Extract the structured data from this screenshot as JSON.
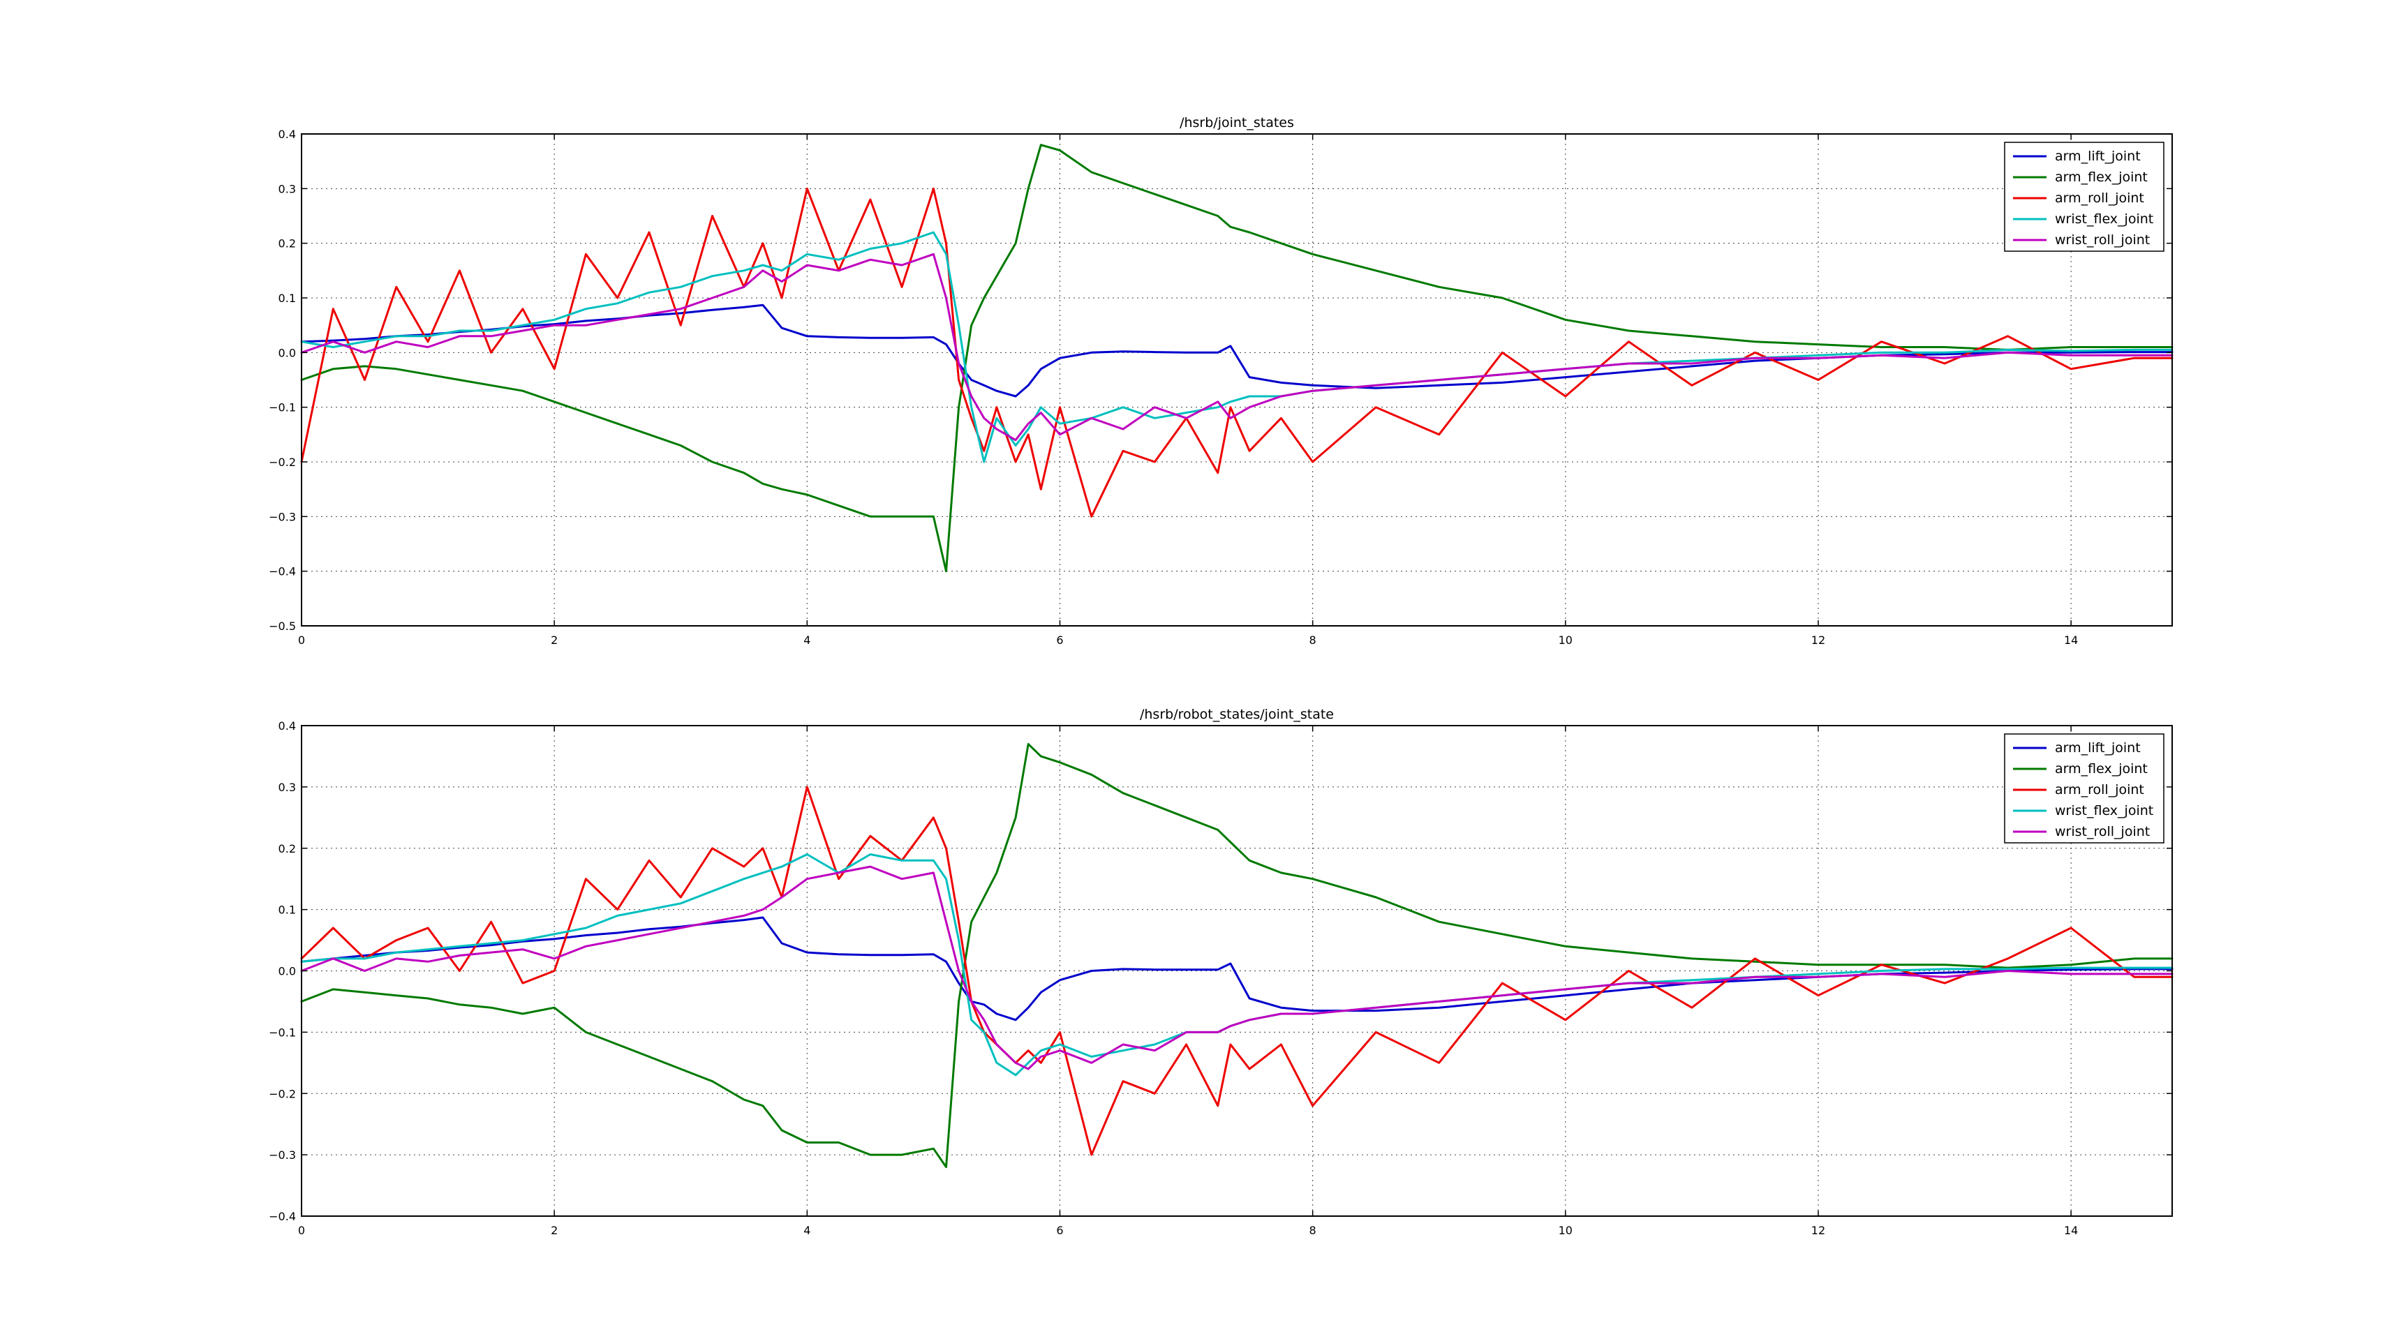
{
  "colors": {
    "arm_lift_joint": "#0000cc",
    "arm_flex_joint": "#007a00",
    "arm_roll_joint": "#ee0000",
    "wrist_flex_joint": "#00bfbf",
    "wrist_roll_joint": "#bf00bf"
  },
  "chart_data": [
    {
      "type": "line",
      "title": "/hsrb/joint_states",
      "xlabel": "",
      "ylabel": "",
      "xlim": [
        0,
        14.8
      ],
      "ylim": [
        -0.5,
        0.4
      ],
      "xticks": [
        0,
        2,
        4,
        6,
        8,
        10,
        12,
        14
      ],
      "yticks": [
        -0.5,
        -0.4,
        -0.3,
        -0.2,
        -0.1,
        0.0,
        0.1,
        0.2,
        0.3,
        0.4
      ],
      "ytick_labels": [
        "−0.5",
        "−0.4",
        "−0.3",
        "−0.2",
        "−0.1",
        "0.0",
        "0.1",
        "0.2",
        "0.3",
        "0.4"
      ],
      "grid": true,
      "legend": "top-right",
      "x": [
        0,
        0.25,
        0.5,
        0.75,
        1.0,
        1.25,
        1.5,
        1.75,
        2.0,
        2.25,
        2.5,
        2.75,
        3.0,
        3.25,
        3.5,
        3.65,
        3.8,
        4.0,
        4.25,
        4.5,
        4.75,
        5.0,
        5.1,
        5.2,
        5.3,
        5.4,
        5.5,
        5.65,
        5.75,
        5.85,
        6.0,
        6.25,
        6.5,
        6.75,
        7.0,
        7.25,
        7.35,
        7.5,
        7.75,
        8.0,
        8.5,
        9.0,
        9.5,
        10.0,
        10.5,
        11.0,
        11.5,
        12.0,
        12.5,
        13.0,
        13.5,
        14.0,
        14.5,
        14.8
      ],
      "series": [
        {
          "name": "arm_lift_joint",
          "values": [
            0.02,
            0.022,
            0.025,
            0.03,
            0.033,
            0.038,
            0.042,
            0.048,
            0.052,
            0.058,
            0.062,
            0.068,
            0.072,
            0.078,
            0.083,
            0.087,
            0.045,
            0.03,
            0.028,
            0.027,
            0.027,
            0.028,
            0.015,
            -0.02,
            -0.05,
            -0.06,
            -0.07,
            -0.08,
            -0.06,
            -0.03,
            -0.01,
            0.0,
            0.002,
            0.001,
            0.0,
            0.0,
            0.012,
            -0.045,
            -0.055,
            -0.06,
            -0.065,
            -0.06,
            -0.055,
            -0.045,
            -0.035,
            -0.025,
            -0.015,
            -0.01,
            -0.005,
            -0.003,
            0.0,
            0.0,
            0.001,
            0.001
          ]
        },
        {
          "name": "arm_flex_joint",
          "values": [
            -0.05,
            -0.03,
            -0.025,
            -0.03,
            -0.04,
            -0.05,
            -0.06,
            -0.07,
            -0.09,
            -0.11,
            -0.13,
            -0.15,
            -0.17,
            -0.2,
            -0.22,
            -0.24,
            -0.25,
            -0.26,
            -0.28,
            -0.3,
            -0.3,
            -0.3,
            -0.4,
            -0.1,
            0.05,
            0.1,
            0.14,
            0.2,
            0.3,
            0.38,
            0.37,
            0.33,
            0.31,
            0.29,
            0.27,
            0.25,
            0.23,
            0.22,
            0.2,
            0.18,
            0.15,
            0.12,
            0.1,
            0.06,
            0.04,
            0.03,
            0.02,
            0.015,
            0.01,
            0.01,
            0.005,
            0.01,
            0.01,
            0.01
          ]
        },
        {
          "name": "arm_roll_joint",
          "values": [
            -0.2,
            0.08,
            -0.05,
            0.12,
            0.02,
            0.15,
            0.0,
            0.08,
            -0.03,
            0.18,
            0.1,
            0.22,
            0.05,
            0.25,
            0.12,
            0.2,
            0.1,
            0.3,
            0.15,
            0.28,
            0.12,
            0.3,
            0.2,
            -0.05,
            -0.12,
            -0.18,
            -0.1,
            -0.2,
            -0.15,
            -0.25,
            -0.1,
            -0.3,
            -0.18,
            -0.2,
            -0.12,
            -0.22,
            -0.1,
            -0.18,
            -0.12,
            -0.2,
            -0.1,
            -0.15,
            0.0,
            -0.08,
            0.02,
            -0.06,
            0.0,
            -0.05,
            0.02,
            -0.02,
            0.03,
            -0.03,
            -0.01,
            -0.01
          ]
        },
        {
          "name": "wrist_flex_joint",
          "values": [
            0.02,
            0.01,
            0.02,
            0.03,
            0.03,
            0.04,
            0.04,
            0.05,
            0.06,
            0.08,
            0.09,
            0.11,
            0.12,
            0.14,
            0.15,
            0.16,
            0.15,
            0.18,
            0.17,
            0.19,
            0.2,
            0.22,
            0.18,
            0.05,
            -0.1,
            -0.2,
            -0.12,
            -0.17,
            -0.14,
            -0.1,
            -0.13,
            -0.12,
            -0.1,
            -0.12,
            -0.11,
            -0.1,
            -0.09,
            -0.08,
            -0.08,
            -0.07,
            -0.06,
            -0.05,
            -0.04,
            -0.03,
            -0.02,
            -0.015,
            -0.01,
            -0.005,
            0.0,
            0.0,
            0.005,
            0.003,
            0.005,
            0.005
          ]
        },
        {
          "name": "wrist_roll_joint",
          "values": [
            0.0,
            0.02,
            0.0,
            0.02,
            0.01,
            0.03,
            0.03,
            0.04,
            0.05,
            0.05,
            0.06,
            0.07,
            0.08,
            0.1,
            0.12,
            0.15,
            0.13,
            0.16,
            0.15,
            0.17,
            0.16,
            0.18,
            0.1,
            -0.02,
            -0.08,
            -0.12,
            -0.14,
            -0.16,
            -0.13,
            -0.11,
            -0.15,
            -0.12,
            -0.14,
            -0.1,
            -0.12,
            -0.09,
            -0.12,
            -0.1,
            -0.08,
            -0.07,
            -0.06,
            -0.05,
            -0.04,
            -0.03,
            -0.02,
            -0.02,
            -0.01,
            -0.01,
            -0.005,
            -0.01,
            0.0,
            -0.005,
            -0.005,
            -0.005
          ]
        }
      ]
    },
    {
      "type": "line",
      "title": "/hsrb/robot_states/joint_state",
      "xlabel": "",
      "ylabel": "",
      "xlim": [
        0,
        14.8
      ],
      "ylim": [
        -0.4,
        0.4
      ],
      "xticks": [
        0,
        2,
        4,
        6,
        8,
        10,
        12,
        14
      ],
      "yticks": [
        -0.4,
        -0.3,
        -0.2,
        -0.1,
        0.0,
        0.1,
        0.2,
        0.3,
        0.4
      ],
      "ytick_labels": [
        "−0.4",
        "−0.3",
        "−0.2",
        "−0.1",
        "0.0",
        "0.1",
        "0.2",
        "0.3",
        "0.4"
      ],
      "grid": true,
      "legend": "top-right",
      "x": [
        0,
        0.25,
        0.5,
        0.75,
        1.0,
        1.25,
        1.5,
        1.75,
        2.0,
        2.25,
        2.5,
        2.75,
        3.0,
        3.25,
        3.5,
        3.65,
        3.8,
        4.0,
        4.25,
        4.5,
        4.75,
        5.0,
        5.1,
        5.2,
        5.3,
        5.4,
        5.5,
        5.65,
        5.75,
        5.85,
        6.0,
        6.25,
        6.5,
        6.75,
        7.0,
        7.25,
        7.35,
        7.5,
        7.75,
        8.0,
        8.5,
        9.0,
        9.5,
        10.0,
        10.5,
        11.0,
        11.5,
        12.0,
        12.5,
        13.0,
        13.5,
        14.0,
        14.5,
        14.8
      ],
      "series": [
        {
          "name": "arm_lift_joint",
          "values": [
            0.015,
            0.02,
            0.025,
            0.03,
            0.033,
            0.038,
            0.042,
            0.048,
            0.052,
            0.058,
            0.062,
            0.068,
            0.072,
            0.078,
            0.083,
            0.087,
            0.045,
            0.03,
            0.027,
            0.026,
            0.026,
            0.027,
            0.015,
            -0.02,
            -0.05,
            -0.055,
            -0.07,
            -0.08,
            -0.06,
            -0.035,
            -0.015,
            0.0,
            0.003,
            0.002,
            0.002,
            0.002,
            0.012,
            -0.045,
            -0.06,
            -0.065,
            -0.065,
            -0.06,
            -0.05,
            -0.04,
            -0.03,
            -0.02,
            -0.015,
            -0.01,
            -0.005,
            -0.003,
            0.0,
            0.002,
            0.003,
            0.003
          ]
        },
        {
          "name": "arm_flex_joint",
          "values": [
            -0.05,
            -0.03,
            -0.035,
            -0.04,
            -0.045,
            -0.055,
            -0.06,
            -0.07,
            -0.06,
            -0.1,
            -0.12,
            -0.14,
            -0.16,
            -0.18,
            -0.21,
            -0.22,
            -0.26,
            -0.28,
            -0.28,
            -0.3,
            -0.3,
            -0.29,
            -0.32,
            -0.05,
            0.08,
            0.12,
            0.16,
            0.25,
            0.37,
            0.35,
            0.34,
            0.32,
            0.29,
            0.27,
            0.25,
            0.23,
            0.21,
            0.18,
            0.16,
            0.15,
            0.12,
            0.08,
            0.06,
            0.04,
            0.03,
            0.02,
            0.015,
            0.01,
            0.01,
            0.01,
            0.005,
            0.01,
            0.02,
            0.02
          ]
        },
        {
          "name": "arm_roll_joint",
          "values": [
            0.02,
            0.07,
            0.02,
            0.05,
            0.07,
            0.0,
            0.08,
            -0.02,
            0.0,
            0.15,
            0.1,
            0.18,
            0.12,
            0.2,
            0.17,
            0.2,
            0.12,
            0.3,
            0.15,
            0.22,
            0.18,
            0.25,
            0.2,
            0.08,
            -0.05,
            -0.1,
            -0.12,
            -0.15,
            -0.13,
            -0.15,
            -0.1,
            -0.3,
            -0.18,
            -0.2,
            -0.12,
            -0.22,
            -0.12,
            -0.16,
            -0.12,
            -0.22,
            -0.1,
            -0.15,
            -0.02,
            -0.08,
            0.0,
            -0.06,
            0.02,
            -0.04,
            0.01,
            -0.02,
            0.02,
            0.07,
            -0.01,
            -0.01
          ]
        },
        {
          "name": "wrist_flex_joint",
          "values": [
            0.015,
            0.02,
            0.02,
            0.03,
            0.035,
            0.04,
            0.045,
            0.05,
            0.06,
            0.07,
            0.09,
            0.1,
            0.11,
            0.13,
            0.15,
            0.16,
            0.17,
            0.19,
            0.16,
            0.19,
            0.18,
            0.18,
            0.15,
            0.05,
            -0.08,
            -0.1,
            -0.15,
            -0.17,
            -0.15,
            -0.13,
            -0.12,
            -0.14,
            -0.13,
            -0.12,
            -0.1,
            -0.1,
            -0.09,
            -0.08,
            -0.07,
            -0.07,
            -0.06,
            -0.05,
            -0.04,
            -0.03,
            -0.02,
            -0.015,
            -0.01,
            -0.005,
            0.0,
            0.003,
            0.003,
            0.005,
            0.005,
            0.005
          ]
        },
        {
          "name": "wrist_roll_joint",
          "values": [
            0.0,
            0.02,
            0.0,
            0.02,
            0.015,
            0.025,
            0.03,
            0.035,
            0.02,
            0.04,
            0.05,
            0.06,
            0.07,
            0.08,
            0.09,
            0.1,
            0.12,
            0.15,
            0.16,
            0.17,
            0.15,
            0.16,
            0.08,
            0.0,
            -0.05,
            -0.08,
            -0.12,
            -0.15,
            -0.16,
            -0.14,
            -0.13,
            -0.15,
            -0.12,
            -0.13,
            -0.1,
            -0.1,
            -0.09,
            -0.08,
            -0.07,
            -0.07,
            -0.06,
            -0.05,
            -0.04,
            -0.03,
            -0.02,
            -0.02,
            -0.01,
            -0.01,
            -0.005,
            -0.01,
            0.0,
            -0.005,
            -0.005,
            -0.005
          ]
        }
      ]
    }
  ]
}
